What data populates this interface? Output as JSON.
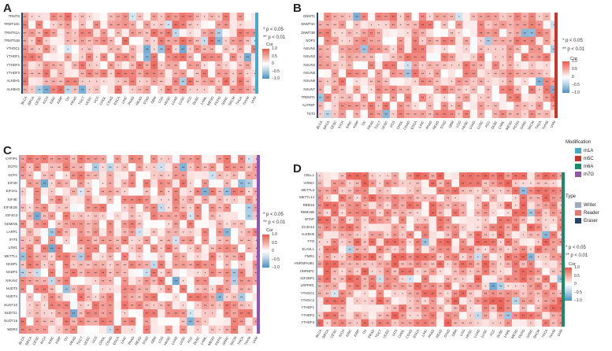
{
  "panels": {
    "A": {
      "letter": "A",
      "rows": [
        "TRMT6",
        "TRMT10C",
        "TRMT61A",
        "TRMT61B",
        "YTHDC1",
        "YTHDF1",
        "YTHDF2",
        "YTHDF3",
        "ALKBH1",
        "ALKBH3"
      ],
      "sig_low": "* p < 0.05",
      "sig_high": "** p < 0.01",
      "legend_title": "Cor",
      "legend_ticks": [
        "1.0",
        "0.5",
        "0",
        "−0.5",
        "−1.0"
      ]
    },
    "B": {
      "letter": "B",
      "rows": [
        "DNMT1",
        "DNMT3A",
        "DNMT3B",
        "NOP2",
        "NSUN2",
        "NSUN3",
        "NSUN4",
        "NSUN5",
        "NSUN6",
        "NSUN7",
        "TRDMT1",
        "ALYREF",
        "TET2"
      ],
      "sig_low": "* p < 0.05",
      "sig_high": "** p < 0.01",
      "legend_title": "Cor",
      "legend_ticks": [
        "1.0",
        "0.5",
        "0",
        "−0.5",
        "−1.0"
      ]
    },
    "C": {
      "letter": "C",
      "rows": [
        "CYFIP1",
        "DCPS",
        "DCP2",
        "EIF3D",
        "EIF4A1",
        "EIF4E",
        "EIF4E1B",
        "EIF4G3",
        "GEMIN5",
        "LARP1",
        "IFIT5",
        "LSM1",
        "METTL1",
        "NCBP1",
        "NCBP2",
        "NSUN2",
        "NUDT3",
        "NUDT4",
        "NUDT10",
        "NUDT11",
        "NUDT16",
        "WDR4"
      ],
      "sig_low": "* p < 0.05",
      "sig_high": "** p < 0.01",
      "legend_title": "Cor",
      "legend_ticks": [
        "1.0",
        "0.5",
        "0",
        "−0.5",
        "−1.0"
      ]
    },
    "D": {
      "letter": "D",
      "rows": [
        "CBLL1",
        "VIRMA",
        "METTL3",
        "METTL14",
        "RBM15",
        "RBM15B",
        "WTAP",
        "ZC3H13",
        "ALKBH5",
        "FTO",
        "ELAVL1",
        "FMR1",
        "HNRNPA2B1",
        "HNRNPC",
        "IGF2BP1",
        "LRPPRC",
        "YTHDC1",
        "YTHDC2",
        "YTHDF1",
        "YTHDF2",
        "YTHDF3"
      ],
      "sig_low": "* p < 0.05",
      "sig_high": "** p < 0.01",
      "legend_title": "Cor",
      "legend_ticks": [
        "1.0",
        "0.5",
        "0",
        "−0.5",
        "−1.0"
      ]
    }
  },
  "cancers": [
    "BLCA",
    "BRCA",
    "CESC",
    "KICH",
    "KIRC",
    "KIRP",
    "OV",
    "PRAD",
    "TGCT",
    "UCEC",
    "UCS",
    "CHOL",
    "COAD",
    "ESCA",
    "LIHC",
    "PAAD",
    "READ",
    "STAD",
    "GBM",
    "LGG",
    "HNSC",
    "LUAD",
    "LUSC",
    "ACC",
    "DLBC",
    "LAML",
    "MESO",
    "PCPG",
    "SARC",
    "SKCM",
    "THCA",
    "THYM",
    "UVM"
  ],
  "modification_legend": {
    "title": "Modification",
    "items": [
      {
        "label": "m1A",
        "color": "#49a9c4"
      },
      {
        "label": "m5C",
        "color": "#c0392b"
      },
      {
        "label": "m6A",
        "color": "#1a8a6b"
      },
      {
        "label": "m7G",
        "color": "#8e5aa8"
      }
    ]
  },
  "type_legend": {
    "title": "Type",
    "items": [
      {
        "label": "Writer",
        "color": "#9aa9bd"
      },
      {
        "label": "Reader",
        "color": "#e07a72"
      },
      {
        "label": "Eraser",
        "color": "#27456b"
      }
    ]
  },
  "colors": {
    "pos_strong": "#e85a4f",
    "neg_strong": "#4a8fc2",
    "m1A": "#49a9c4",
    "m5C": "#c0392b",
    "m6A": "#1a8a6b",
    "m7G": "#8e5aa8",
    "writer": "#9aa9bd",
    "reader": "#e07a72",
    "eraser": "#27456b"
  }
}
